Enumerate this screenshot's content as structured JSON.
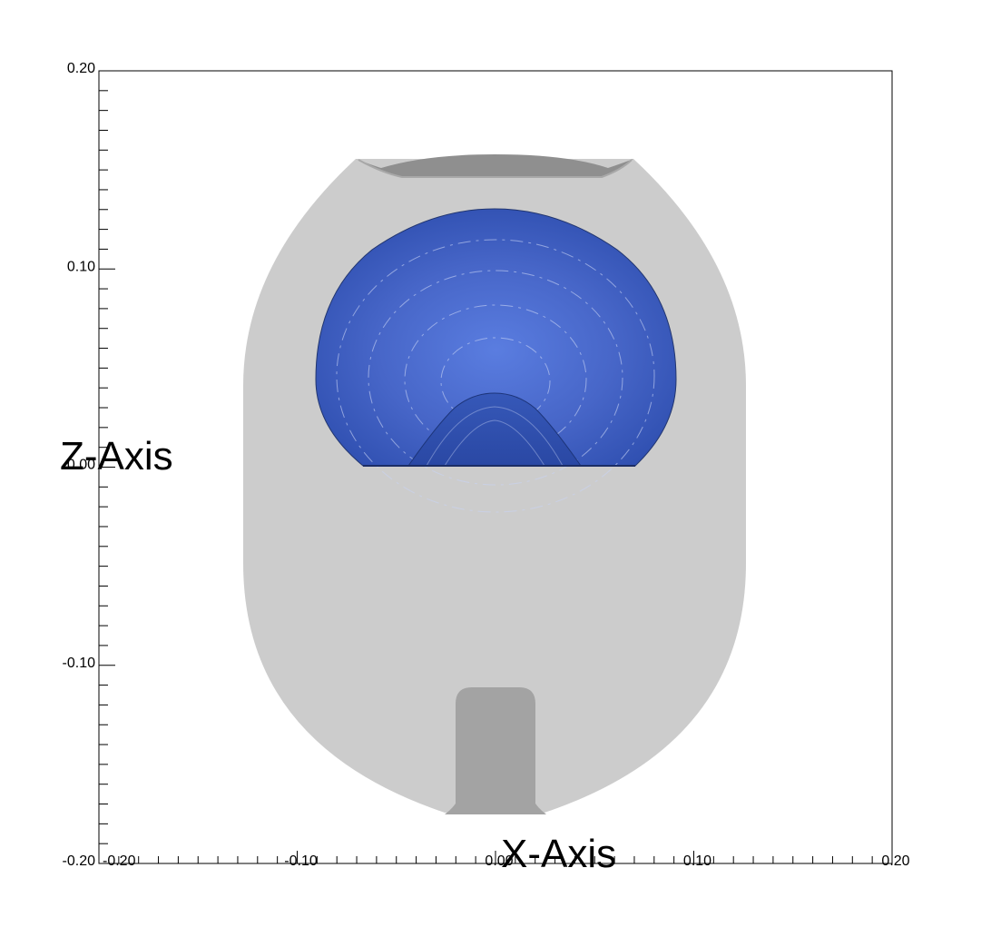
{
  "chart_data": {
    "type": "contour",
    "xlabel": "X-Axis",
    "ylabel": "Z-Axis",
    "xlim": [
      -0.2,
      0.2
    ],
    "ylim": [
      -0.2,
      0.2
    ],
    "x_ticks": [
      "-0.20",
      "-0.10",
      "0.00",
      "0.10",
      "0.20"
    ],
    "y_ticks": [
      "0.20",
      "0.10",
      "0.00",
      "-0.10",
      "-0.20"
    ],
    "x_tick_values": [
      -0.2,
      -0.1,
      0.0,
      0.1,
      0.2
    ],
    "y_tick_values": [
      0.2,
      0.1,
      0.0,
      -0.1,
      -0.2
    ],
    "colors": {
      "vessel": "#cccccc",
      "top_opening": "#8a8a8a",
      "bottom_inlet": "#a3a3a3",
      "bubble_dark": "#2f4fb0",
      "bubble_light": "#5a7de0",
      "inner_core": "#2a4aa8"
    }
  }
}
